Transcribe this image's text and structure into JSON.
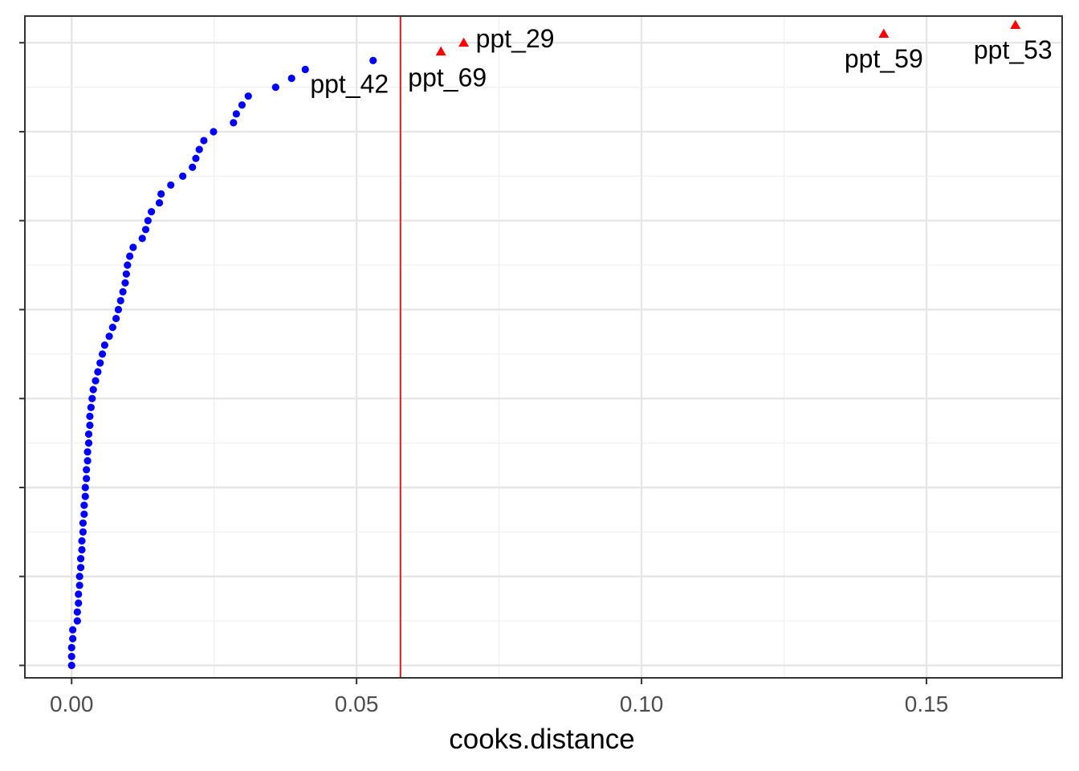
{
  "chart_data": {
    "type": "scatter",
    "xlabel": "cooks.distance",
    "ylabel": "",
    "xlim": [
      -0.0082,
      0.1738
    ],
    "ylim": [
      -1.4,
      73.0
    ],
    "x_ticks": [
      0.0,
      0.05,
      0.1,
      0.15
    ],
    "x_tick_labels": [
      "0.00",
      "0.05",
      "0.10",
      "0.15"
    ],
    "y_axis_labels_shown": false,
    "grid": true,
    "legend": "none",
    "threshold": {
      "x": 0.0577,
      "color": "#e41a1c"
    },
    "colors": {
      "normal": "#0000ff",
      "outlier": "#ff0000",
      "threshold": "#e41a1c"
    },
    "points": [
      0.0,
      0.0,
      0.0,
      0.0002,
      0.0002,
      0.001,
      0.001,
      0.0012,
      0.0012,
      0.0014,
      0.0014,
      0.0016,
      0.0016,
      0.0018,
      0.0018,
      0.002,
      0.002,
      0.0022,
      0.0022,
      0.0024,
      0.0024,
      0.0026,
      0.0026,
      0.0028,
      0.0028,
      0.003,
      0.003,
      0.0032,
      0.0032,
      0.0034,
      0.0036,
      0.0038,
      0.0042,
      0.0046,
      0.005,
      0.0054,
      0.0058,
      0.0066,
      0.0072,
      0.0078,
      0.0082,
      0.0086,
      0.009,
      0.0094,
      0.0096,
      0.0098,
      0.0102,
      0.0108,
      0.0124,
      0.013,
      0.0134,
      0.014,
      0.0154,
      0.0157,
      0.0174,
      0.0195,
      0.0212,
      0.0218,
      0.0224,
      0.0232,
      0.0249,
      0.0284,
      0.0289,
      0.0299,
      0.031,
      0.0358,
      0.0386,
      0.041,
      0.0529
    ],
    "labeled_points": [
      {
        "label": "ppt_42",
        "x": 0.041
      },
      {
        "label": "ppt_69",
        "x": 0.0648
      },
      {
        "label": "ppt_29",
        "x": 0.0688
      },
      {
        "label": "ppt_59",
        "x": 0.1425
      },
      {
        "label": "ppt_53",
        "x": 0.1656
      }
    ],
    "outliers": [
      {
        "label": "ppt_69",
        "x": 0.0648,
        "y": 69
      },
      {
        "label": "ppt_29",
        "x": 0.0688,
        "y": 70
      },
      {
        "label": "ppt_59",
        "x": 0.1425,
        "y": 71
      },
      {
        "label": "ppt_53",
        "x": 0.1656,
        "y": 72
      }
    ]
  }
}
